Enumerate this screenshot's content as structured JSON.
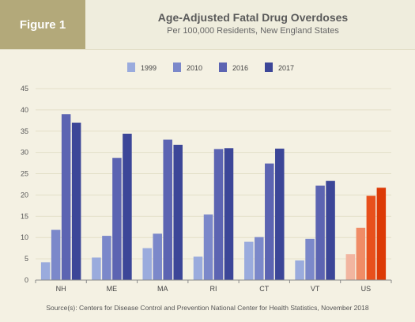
{
  "header": {
    "figure_label": "Figure 1",
    "title": "Age-Adjusted Fatal Drug Overdoses",
    "subtitle": "Per 100,000 Residents, New England States"
  },
  "source": "Source(s): Centers for Disease Control and Prevention National Center for Health Statistics, November 2018",
  "chart_data": {
    "type": "bar",
    "title": "Age-Adjusted Fatal Drug Overdoses",
    "subtitle": "Per 100,000 Residents, New England States",
    "xlabel": "",
    "ylabel": "",
    "categories": [
      "NH",
      "ME",
      "MA",
      "RI",
      "CT",
      "VT",
      "US"
    ],
    "ylim": [
      0,
      45
    ],
    "yticks": [
      0,
      5,
      10,
      15,
      20,
      25,
      30,
      35,
      40,
      45
    ],
    "grid": true,
    "legend_position": "top",
    "series": [
      {
        "name": "1999",
        "values": [
          4.2,
          5.3,
          7.5,
          5.5,
          9.0,
          4.6,
          6.1
        ],
        "color": "#9aabdd"
      },
      {
        "name": "2010",
        "values": [
          11.8,
          10.4,
          10.9,
          15.4,
          10.1,
          9.7,
          12.3
        ],
        "color": "#7b88ca"
      },
      {
        "name": "2016",
        "values": [
          39.0,
          28.7,
          33.0,
          30.8,
          27.4,
          22.2,
          19.8
        ],
        "color": "#5c64b2"
      },
      {
        "name": "2017",
        "values": [
          37.0,
          34.4,
          31.8,
          31.0,
          30.9,
          23.3,
          21.7
        ],
        "color": "#3c4698"
      }
    ],
    "highlight_category": "US",
    "highlight_colors": [
      "#f2b5a0",
      "#f08c66",
      "#e8501c",
      "#dc3a06"
    ]
  }
}
